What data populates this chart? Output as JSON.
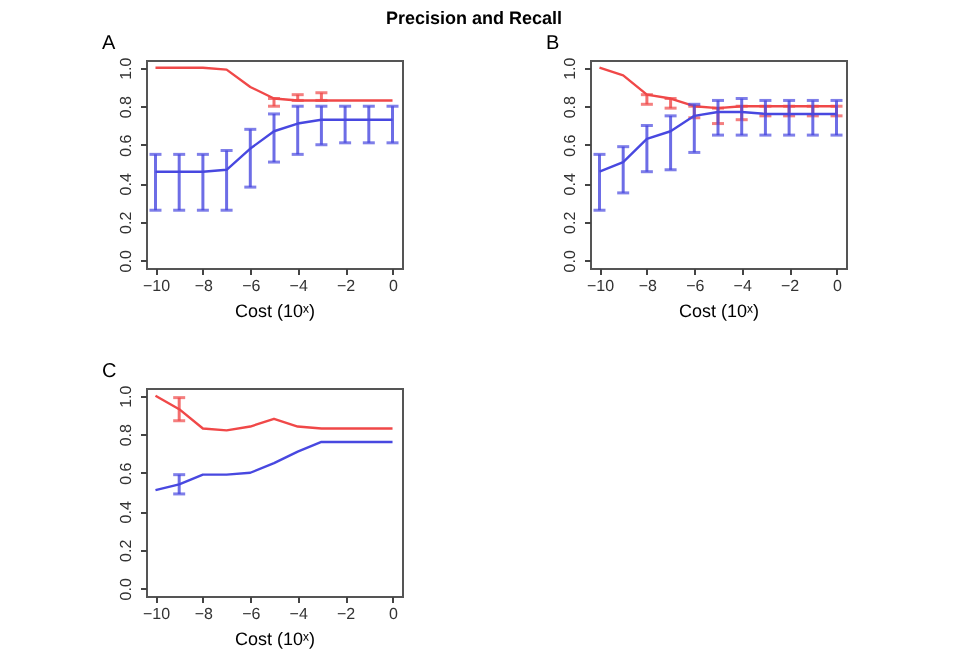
{
  "chart_data": [
    {
      "type": "line",
      "title": "A",
      "xlabel": "Cost (10ˣ)",
      "annotations": [
        "Precision and Recall"
      ],
      "x": [
        -10,
        -9,
        -8,
        -7,
        -6,
        -5,
        -4,
        -3,
        -2,
        -1,
        0
      ],
      "xlim": [
        -10.4,
        0.4
      ],
      "xticks": [
        -10,
        -8,
        -6,
        -4,
        -2,
        0
      ],
      "ylim": [
        -0.04,
        1.04
      ],
      "yticks": [
        {
          "value": 0,
          "label": "0.0"
        },
        {
          "value": 0.2,
          "label": "0.2"
        },
        {
          "value": 0.4,
          "label": "0.4"
        },
        {
          "value": 0.6,
          "label": "0.6"
        },
        {
          "value": 0.8,
          "label": "0.8"
        },
        {
          "value": 1,
          "label": "1.0"
        }
      ],
      "grid": false,
      "marker": "none",
      "line_style": "solid",
      "series": [
        {
          "color": "#f04848",
          "values": [
            1.0,
            1.0,
            1.0,
            0.99,
            0.9,
            0.84,
            0.83,
            0.83,
            0.83,
            0.83,
            0.83
          ],
          "errors": [
            null,
            null,
            null,
            null,
            null,
            [
              0.8,
              0.84
            ],
            [
              0.83,
              0.86
            ],
            [
              0.83,
              0.87
            ],
            null,
            null,
            null
          ]
        },
        {
          "color": "#4848e0",
          "values": [
            0.46,
            0.46,
            0.46,
            0.47,
            0.58,
            0.67,
            0.71,
            0.73,
            0.73,
            0.73,
            0.73
          ],
          "errors": [
            [
              0.26,
              0.55
            ],
            [
              0.26,
              0.55
            ],
            [
              0.26,
              0.55
            ],
            [
              0.26,
              0.57
            ],
            [
              0.38,
              0.68
            ],
            [
              0.51,
              0.76
            ],
            [
              0.55,
              0.8
            ],
            [
              0.6,
              0.8
            ],
            [
              0.61,
              0.8
            ],
            [
              0.61,
              0.8
            ],
            [
              0.61,
              0.8
            ]
          ]
        }
      ]
    },
    {
      "type": "line",
      "title": "B",
      "xlabel": "Cost (10ˣ)",
      "x": [
        -10,
        -9,
        -8,
        -7,
        -6,
        -5,
        -4,
        -3,
        -2,
        -1,
        0
      ],
      "xlim": [
        -10.4,
        0.4
      ],
      "xticks": [
        -10,
        -8,
        -6,
        -4,
        -2,
        0
      ],
      "ylim": [
        -0.04,
        1.04
      ],
      "yticks": [
        {
          "value": 0,
          "label": "0.0"
        },
        {
          "value": 0.2,
          "label": "0.2"
        },
        {
          "value": 0.4,
          "label": "0.4"
        },
        {
          "value": 0.6,
          "label": "0.6"
        },
        {
          "value": 0.8,
          "label": "0.8"
        },
        {
          "value": 1,
          "label": "1.0"
        }
      ],
      "grid": false,
      "marker": "none",
      "line_style": "solid",
      "series": [
        {
          "color": "#f04848",
          "values": [
            1.0,
            0.96,
            0.86,
            0.84,
            0.8,
            0.79,
            0.8,
            0.8,
            0.8,
            0.8,
            0.8
          ],
          "errors": [
            null,
            null,
            [
              0.81,
              0.86
            ],
            [
              0.79,
              0.84
            ],
            [
              0.74,
              0.8
            ],
            [
              0.71,
              0.79
            ],
            [
              0.73,
              0.8
            ],
            [
              0.75,
              0.8
            ],
            [
              0.75,
              0.8
            ],
            [
              0.75,
              0.8
            ],
            [
              0.75,
              0.8
            ]
          ]
        },
        {
          "color": "#4848e0",
          "values": [
            0.46,
            0.51,
            0.63,
            0.67,
            0.75,
            0.77,
            0.77,
            0.76,
            0.76,
            0.76,
            0.76
          ],
          "errors": [
            [
              0.26,
              0.55
            ],
            [
              0.35,
              0.59
            ],
            [
              0.46,
              0.7
            ],
            [
              0.47,
              0.75
            ],
            [
              0.56,
              0.81
            ],
            [
              0.65,
              0.83
            ],
            [
              0.65,
              0.84
            ],
            [
              0.65,
              0.83
            ],
            [
              0.65,
              0.83
            ],
            [
              0.65,
              0.83
            ],
            [
              0.65,
              0.83
            ]
          ]
        }
      ]
    },
    {
      "type": "line",
      "title": "C",
      "xlabel": "Cost (10ˣ)",
      "x": [
        -10,
        -9,
        -8,
        -7,
        -6,
        -5,
        -4,
        -3,
        -2,
        -1,
        0
      ],
      "xlim": [
        -10.4,
        0.4
      ],
      "xticks": [
        -10,
        -8,
        -6,
        -4,
        -2,
        0
      ],
      "ylim": [
        -0.04,
        1.04
      ],
      "yticks": [
        {
          "value": 0,
          "label": "0.0"
        },
        {
          "value": 0.2,
          "label": "0.2"
        },
        {
          "value": 0.4,
          "label": "0.4"
        },
        {
          "value": 0.6,
          "label": "0.6"
        },
        {
          "value": 0.8,
          "label": "0.8"
        },
        {
          "value": 1,
          "label": "1.0"
        }
      ],
      "grid": false,
      "marker": "none",
      "line_style": "solid",
      "series": [
        {
          "color": "#f04848",
          "values": [
            1.0,
            0.93,
            0.83,
            0.82,
            0.84,
            0.88,
            0.84,
            0.83,
            0.83,
            0.83,
            0.83
          ],
          "errors": [
            null,
            [
              0.87,
              0.99
            ],
            null,
            null,
            null,
            null,
            null,
            null,
            null,
            null,
            null
          ]
        },
        {
          "color": "#4848e0",
          "values": [
            0.51,
            0.54,
            0.59,
            0.59,
            0.6,
            0.65,
            0.71,
            0.76,
            0.76,
            0.76,
            0.76
          ],
          "errors": [
            null,
            [
              0.49,
              0.59
            ],
            null,
            null,
            null,
            null,
            null,
            null,
            null,
            null,
            null
          ]
        }
      ]
    }
  ]
}
